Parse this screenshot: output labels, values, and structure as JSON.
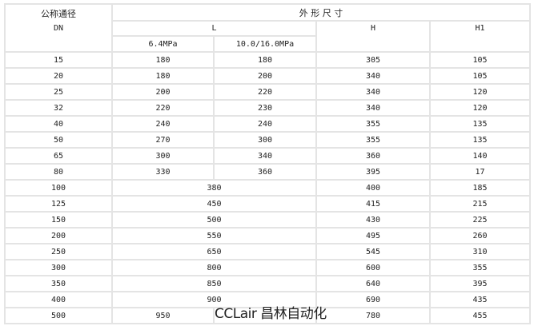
{
  "header": {
    "dn_label": "公称通径",
    "dn_sub": "DN",
    "dims_label": "外 形 尺 寸",
    "L": "L",
    "H": "H",
    "H1": "H1",
    "L_64": "6.4MPa",
    "L_100_160": "10.0/16.0MPa"
  },
  "rows_split": [
    {
      "dn": "15",
      "l1": "180",
      "l2": "180",
      "h": "305",
      "h1": "105"
    },
    {
      "dn": "20",
      "l1": "180",
      "l2": "200",
      "h": "340",
      "h1": "105"
    },
    {
      "dn": "25",
      "l1": "200",
      "l2": "220",
      "h": "340",
      "h1": "120"
    },
    {
      "dn": "32",
      "l1": "220",
      "l2": "230",
      "h": "340",
      "h1": "120"
    },
    {
      "dn": "40",
      "l1": "240",
      "l2": "240",
      "h": "355",
      "h1": "135"
    },
    {
      "dn": "50",
      "l1": "270",
      "l2": "300",
      "h": "355",
      "h1": "135"
    },
    {
      "dn": "65",
      "l1": "300",
      "l2": "340",
      "h": "360",
      "h1": "140"
    },
    {
      "dn": "80",
      "l1": "330",
      "l2": "360",
      "h": "395",
      "h1": "17"
    }
  ],
  "rows_merged": [
    {
      "dn": "100",
      "l": "380",
      "h": "400",
      "h1": "185"
    },
    {
      "dn": "125",
      "l": "450",
      "h": "415",
      "h1": "215"
    },
    {
      "dn": "150",
      "l": "500",
      "h": "430",
      "h1": "225"
    },
    {
      "dn": "200",
      "l": "550",
      "h": "495",
      "h1": "260"
    },
    {
      "dn": "250",
      "l": "650",
      "h": "545",
      "h1": "310"
    },
    {
      "dn": "300",
      "l": "800",
      "h": "600",
      "h1": "355"
    },
    {
      "dn": "350",
      "l": "850",
      "h": "640",
      "h1": "395"
    },
    {
      "dn": "400",
      "l": "900",
      "h": "690",
      "h1": "435"
    }
  ],
  "last_row": {
    "dn": "500",
    "l1": "950",
    "l2": "",
    "h": "780",
    "h1": "455"
  },
  "watermark": "CCLair 昌林自动化"
}
